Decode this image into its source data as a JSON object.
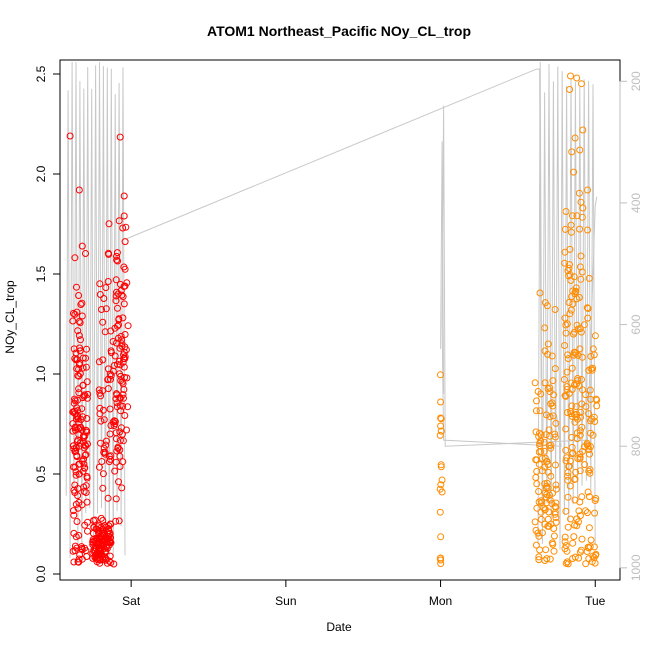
{
  "chart_data": {
    "type": "scatter",
    "title": "ATOM1 Northeast_Pacific NOy_CL_trop",
    "xlabel": "Date",
    "ylabel": "NOy_CL_trop",
    "x_ticks": [
      {
        "label": "Sat",
        "day": 1.0
      },
      {
        "label": "Sun",
        "day": 2.0
      },
      {
        "label": "Mon",
        "day": 3.0
      },
      {
        "label": "Tue",
        "day": 4.0
      }
    ],
    "xlim_days": [
      0.54,
      4.16
    ],
    "ylim": [
      -0.03,
      2.57
    ],
    "y_ticks": [
      0.0,
      0.5,
      1.0,
      1.5,
      2.0,
      2.5
    ],
    "right_axis": {
      "ticks": [
        200,
        400,
        600,
        800,
        1000
      ],
      "ylim_inverted": [
        1020,
        165
      ],
      "color": "#bfbfbf"
    },
    "colors": {
      "series_a": "#ff0000",
      "series_b": "#ff8c00",
      "line": "#c8c8c8"
    },
    "grid": false,
    "legend": "none",
    "series": [
      {
        "color": "#ff0000",
        "clusters": [
          {
            "x_center": 0.67,
            "x_spread": 0.05,
            "y_mean": 0.75,
            "y_sd": 0.38,
            "n": 160
          },
          {
            "x_center": 0.81,
            "x_spread": 0.06,
            "y_mean": 0.15,
            "y_sd": 0.07,
            "n": 120
          },
          {
            "x_center": 0.87,
            "x_spread": 0.08,
            "y_mean": 0.85,
            "y_sd": 0.35,
            "n": 110
          },
          {
            "x_center": 0.94,
            "x_spread": 0.04,
            "y_mean": 1.25,
            "y_sd": 0.3,
            "n": 50
          }
        ],
        "points": [
          {
            "x": 0.605,
            "y": 2.19
          },
          {
            "x": 0.665,
            "y": 1.92
          },
          {
            "x": 0.955,
            "y": 1.89
          },
          {
            "x": 0.955,
            "y": 1.79
          },
          {
            "x": 0.945,
            "y": 1.73
          },
          {
            "x": 0.96,
            "y": 1.44
          },
          {
            "x": 0.97,
            "y": 0.72
          }
        ]
      },
      {
        "color": "#ff8c00",
        "clusters": [
          {
            "x_center": 3.0,
            "x_spread": 0.005,
            "y_mean": 0.4,
            "y_sd": 0.3,
            "n": 12
          },
          {
            "x_center": 3.68,
            "x_spread": 0.07,
            "y_mean": 0.55,
            "y_sd": 0.35,
            "n": 120
          },
          {
            "x_center": 3.86,
            "x_spread": 0.06,
            "y_mean": 0.9,
            "y_sd": 0.6,
            "n": 150
          },
          {
            "x_center": 3.97,
            "x_spread": 0.04,
            "y_mean": 0.6,
            "y_sd": 0.45,
            "n": 60
          }
        ],
        "points": [
          {
            "x": 3.0,
            "y": 0.86
          },
          {
            "x": 3.0,
            "y": 0.78
          },
          {
            "x": 3.0,
            "y": 0.74
          },
          {
            "x": 3.01,
            "y": 0.47
          },
          {
            "x": 3.01,
            "y": 0.41
          },
          {
            "x": 3.0,
            "y": 0.07
          },
          {
            "x": 3.0,
            "y": 0.08
          },
          {
            "x": 3.84,
            "y": 2.49
          },
          {
            "x": 3.88,
            "y": 2.48
          },
          {
            "x": 3.87,
            "y": 2.18
          },
          {
            "x": 3.9,
            "y": 2.12
          },
          {
            "x": 3.95,
            "y": 1.92
          },
          {
            "x": 3.92,
            "y": 1.83
          },
          {
            "x": 3.95,
            "y": 1.72
          }
        ]
      }
    ],
    "line_series": {
      "axis": "right",
      "segments": [
        {
          "x_start": 0.58,
          "x_end": 0.96,
          "y_low": 870,
          "y_high": 165,
          "n": 30
        },
        {
          "x_start": 3.0,
          "x_end": 3.02,
          "y_low": 600,
          "y_high": 240,
          "n": 2
        },
        {
          "x_start": 3.63,
          "x_end": 4.0,
          "y_low": 850,
          "y_high": 165,
          "n": 26
        }
      ],
      "path": [
        {
          "x": 0.96,
          "y": 460
        },
        {
          "x": 3.62,
          "y": 180
        },
        {
          "x": 3.64,
          "y": 180
        },
        {
          "x": 3.65,
          "y": 700
        },
        {
          "x": 3.68,
          "y": 700
        },
        {
          "x": 3.68,
          "y": 750
        },
        {
          "x": 3.75,
          "y": 750
        },
        {
          "x": 3.78,
          "y": 800
        },
        {
          "x": 3.02,
          "y": 790
        },
        {
          "x": 3.01,
          "y": 600
        },
        {
          "x": 3.02,
          "y": 240
        },
        {
          "x": 3.03,
          "y": 800
        },
        {
          "x": 3.95,
          "y": 790
        },
        {
          "x": 4.0,
          "y": 405
        },
        {
          "x": 4.01,
          "y": 390
        }
      ]
    }
  }
}
